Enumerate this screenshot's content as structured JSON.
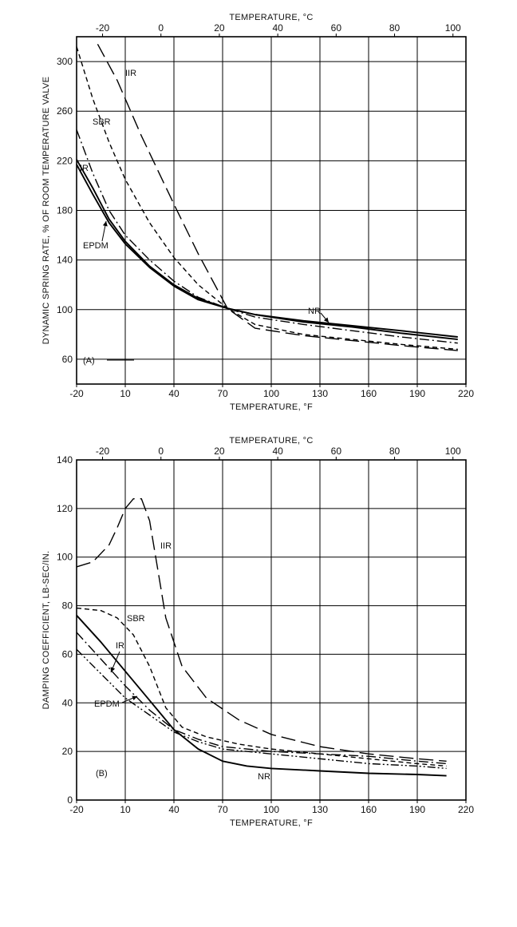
{
  "chart_data": [
    {
      "type": "line",
      "panel_label": "(A)",
      "xlabel": "TEMPERATURE, °F",
      "x2label": "TEMPERATURE, °C",
      "ylabel": "DYNAMIC SPRING RATE, % OF ROOM TEMPERATURE VALVE",
      "xlim": [
        -20,
        220
      ],
      "ylim": [
        40,
        320
      ],
      "x_ticks": [
        -20,
        10,
        40,
        70,
        100,
        130,
        160,
        190,
        220
      ],
      "x2_ticks": [
        -20,
        0,
        20,
        40,
        60,
        80,
        100
      ],
      "y_ticks": [
        60,
        100,
        140,
        180,
        220,
        260,
        300
      ],
      "grid": true,
      "series": [
        {
          "name": "IIR",
          "style": "long-dash",
          "x": [
            -7,
            5,
            20,
            40,
            55,
            73,
            90,
            120,
            150,
            180,
            215
          ],
          "y": [
            314,
            285,
            240,
            185,
            145,
            101,
            85,
            79,
            75,
            71,
            67
          ]
        },
        {
          "name": "SBR",
          "style": "short-dash",
          "x": [
            -20,
            -10,
            0,
            10,
            25,
            40,
            55,
            73,
            90,
            120,
            150,
            180,
            215
          ],
          "y": [
            312,
            270,
            235,
            205,
            170,
            142,
            120,
            101,
            88,
            80,
            76,
            72,
            68
          ]
        },
        {
          "name": "IR",
          "style": "dash-dot",
          "x": [
            -20,
            -10,
            0,
            10,
            25,
            40,
            55,
            73,
            90,
            120,
            150,
            180,
            215
          ],
          "y": [
            245,
            210,
            180,
            160,
            140,
            123,
            110,
            101,
            94,
            88,
            83,
            78,
            73
          ]
        },
        {
          "name": "EPDM",
          "style": "solid",
          "x": [
            -20,
            -10,
            0,
            10,
            25,
            40,
            55,
            73,
            90,
            120,
            150,
            180,
            215
          ],
          "y": [
            221,
            198,
            173,
            155,
            135,
            120,
            109,
            101,
            96,
            90,
            86,
            81,
            76
          ]
        },
        {
          "name": "NR",
          "style": "solid",
          "x": [
            -20,
            -10,
            0,
            10,
            25,
            40,
            55,
            73,
            90,
            120,
            150,
            180,
            215
          ],
          "y": [
            217,
            193,
            170,
            153,
            134,
            119,
            108,
            101,
            96,
            91,
            87,
            83,
            78
          ]
        }
      ],
      "annotations": [
        "IIR",
        "SBR",
        "IR",
        "EPDM",
        "NR"
      ]
    },
    {
      "type": "line",
      "panel_label": "(B)",
      "xlabel": "TEMPERATURE, °F",
      "x2label": "TEMPERATURE, °C",
      "ylabel": "DAMPING COEFFICIENT, LB-SEC/IN.",
      "xlim": [
        -20,
        220
      ],
      "ylim": [
        0,
        140
      ],
      "x_ticks": [
        -20,
        10,
        40,
        70,
        100,
        130,
        160,
        190,
        220
      ],
      "x2_ticks": [
        -20,
        0,
        20,
        40,
        60,
        80,
        100
      ],
      "y_ticks": [
        0,
        20,
        40,
        60,
        80,
        100,
        120,
        140
      ],
      "grid": true,
      "series": [
        {
          "name": "IIR",
          "style": "long-dash",
          "x": [
            -20,
            -10,
            0,
            5,
            10,
            15,
            20,
            25,
            30,
            35,
            45,
            60,
            80,
            100,
            130,
            160,
            190,
            208
          ],
          "y": [
            96,
            98,
            105,
            112,
            120,
            124,
            124,
            115,
            95,
            75,
            55,
            42,
            33,
            27,
            22,
            19,
            17,
            16
          ]
        },
        {
          "name": "SBR",
          "style": "short-dash",
          "x": [
            -20,
            -5,
            5,
            15,
            25,
            35,
            45,
            60,
            80,
            100,
            130,
            160,
            190,
            208
          ],
          "y": [
            79,
            78,
            75,
            68,
            55,
            38,
            30,
            26,
            23,
            21,
            19,
            17,
            15,
            14
          ]
        },
        {
          "name": "IR",
          "style": "dash-dot",
          "x": [
            -20,
            -5,
            10,
            25,
            40,
            55,
            70,
            100,
            130,
            160,
            190,
            208
          ],
          "y": [
            69,
            58,
            47,
            37,
            29,
            25,
            22,
            20,
            19,
            18,
            16,
            15
          ]
        },
        {
          "name": "EPDM",
          "style": "dash-dot-dot",
          "x": [
            -20,
            -5,
            10,
            25,
            40,
            55,
            70,
            100,
            130,
            160,
            190,
            208
          ],
          "y": [
            62,
            52,
            42,
            35,
            28,
            24,
            21,
            19,
            17,
            15,
            14,
            13
          ]
        },
        {
          "name": "NR",
          "style": "solid",
          "x": [
            -20,
            -5,
            10,
            25,
            40,
            55,
            70,
            85,
            100,
            130,
            160,
            190,
            208
          ],
          "y": [
            76,
            65,
            53,
            41,
            29,
            21,
            16,
            14,
            13,
            12,
            11,
            10.5,
            10
          ]
        }
      ],
      "annotations": [
        "IIR",
        "SBR",
        "IR",
        "EPDM",
        "NR"
      ]
    }
  ]
}
